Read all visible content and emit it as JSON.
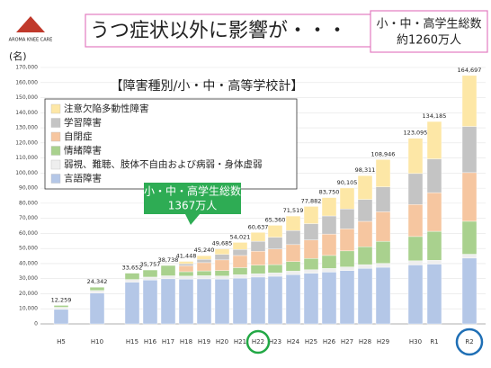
{
  "logo": "AROMA KNEE CARE",
  "title": "うつ症状以外に影響が・・・",
  "current_total": {
    "line1": "小・中・高学生総数",
    "line2": "約1260万人"
  },
  "past_total": {
    "line1": "小・中・高学生総数",
    "line2": "1367万人"
  },
  "chart_data": {
    "type": "bar",
    "stacked": true,
    "title": "【障害種別/小・中・高等学校計】",
    "ylabel": "(名)",
    "categories": [
      "H5",
      "H10",
      "H15",
      "H16",
      "H17",
      "H18",
      "H19",
      "H20",
      "H21",
      "H22",
      "H23",
      "H24",
      "H25",
      "H26",
      "H27",
      "H28",
      "H29",
      "H30",
      "R1",
      "R2"
    ],
    "series": [
      {
        "name": "注意欠陥多動性障害",
        "color": "#fde7a6",
        "values": [
          0,
          0,
          0,
          0,
          0,
          1574,
          2458,
          3567,
          4644,
          5831,
          7879,
          9589,
          11399,
          12167,
          13901,
          15766,
          18064,
          23393,
          24765,
          33795
        ]
      },
      {
        "name": "学習障害",
        "color": "#c4c4c4",
        "values": [
          0,
          0,
          0,
          0,
          0,
          1351,
          2156,
          3682,
          4013,
          6655,
          7813,
          9350,
          10769,
          12006,
          13188,
          14542,
          16545,
          20543,
          22389,
          30612
        ]
      },
      {
        "name": "自閉症",
        "color": "#f6c6a0",
        "values": [
          0,
          0,
          0,
          0,
          0,
          3912,
          5469,
          7047,
          8064,
          9148,
          10342,
          11274,
          12308,
          14189,
          14609,
          16886,
          19567,
          21237,
          25635,
          32247
        ]
      },
      {
        "name": "情緒障害",
        "color": "#a9d18e",
        "values": [
          1204,
          2179,
          4184,
          4699,
          6836,
          2898,
          3197,
          3589,
          4710,
          5737,
          5469,
          6332,
          7450,
          8613,
          10620,
          11824,
          14609,
          16066,
          19189,
          21837
        ]
      },
      {
        "name": "弱視、難聴、肢体不自由および病弱・身体虚弱",
        "color": "#eeeeee",
        "values": [
          1421,
          1702,
          1750,
          1924,
          1995,
          2000,
          2100,
          2150,
          2200,
          2200,
          2250,
          2300,
          2350,
          2400,
          2450,
          2500,
          2600,
          2750,
          2516,
          2574
        ]
      },
      {
        "name": "言語障害",
        "color": "#b4c7e7",
        "values": [
          9634,
          20461,
          27718,
          29134,
          29907,
          29713,
          29860,
          29650,
          30390,
          31066,
          31607,
          32674,
          33606,
          34375,
          35337,
          36793,
          37561,
          39106,
          39691,
          43632
        ]
      }
    ],
    "totals": {
      "values": [
        12259,
        24342,
        33652,
        35757,
        38738,
        41448,
        45240,
        49685,
        54021,
        60637,
        65360,
        71519,
        77882,
        83750,
        90105,
        98311,
        108946,
        123095,
        134185,
        164697
      ],
      "value_labels": [
        "12,259",
        "24,342",
        "33,652",
        "35,757",
        "38,738",
        "41,448",
        "45,240",
        "49,685",
        "54,021",
        "60,637",
        "65,360",
        "71,519",
        "77,882",
        "83,750",
        "90,105",
        "98,311",
        "108,946",
        "123,095",
        "134,185",
        "164,697"
      ]
    },
    "ylim": [
      0,
      170000
    ],
    "yticks": [
      0,
      {
        "value": 10000,
        "label": "10,000"
      },
      {
        "value": 20000,
        "label": "20,000"
      },
      {
        "value": 30000,
        "label": "30,000"
      },
      {
        "value": 40000,
        "label": "40,000"
      },
      {
        "value": 50000,
        "label": "50,000"
      },
      {
        "value": 60000,
        "label": "60,000"
      },
      {
        "value": 70000,
        "label": "70,000"
      },
      {
        "value": 80000,
        "label": "80,000"
      },
      {
        "value": 90000,
        "label": "90,000"
      },
      {
        "value": 100000,
        "label": "100,000"
      },
      {
        "value": 110000,
        "label": "110,000"
      },
      {
        "value": 120000,
        "label": "120,000"
      },
      {
        "value": 130000,
        "label": "130,000"
      },
      {
        "value": 140000,
        "label": "140,000"
      },
      {
        "value": 150000,
        "label": "150,000"
      },
      {
        "value": 160000,
        "label": "160,000"
      },
      {
        "value": 170000,
        "label": "170,000"
      }
    ],
    "grid": true,
    "legend": "upper left"
  }
}
